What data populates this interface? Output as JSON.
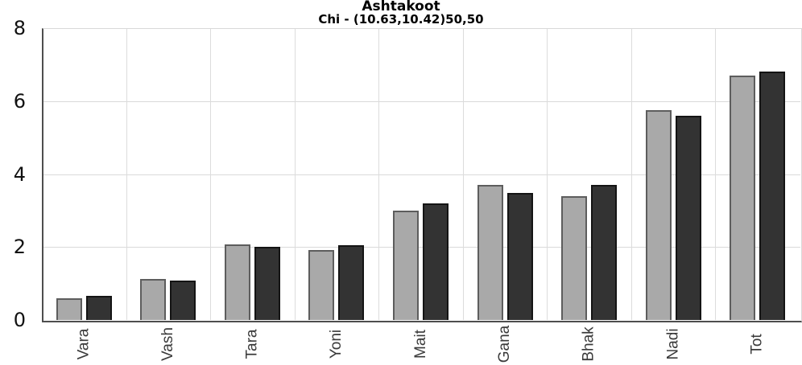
{
  "chart_data": {
    "type": "bar",
    "title": "Ashtakoot",
    "subtitle": "Chi - (10.63,10.42)50,50",
    "categories": [
      "Vara",
      "Vash",
      "Tara",
      "Yoni",
      "Mait",
      "Gana",
      "Bhak",
      "Nadi",
      "Tot"
    ],
    "series": [
      {
        "name": "light-gray-series",
        "fill": "#a9a9a9",
        "border": "#5d5d5d",
        "values": [
          0.6,
          1.12,
          2.07,
          1.92,
          3.0,
          3.7,
          3.4,
          5.75,
          6.7
        ]
      },
      {
        "name": "dark-gray-series",
        "fill": "#333333",
        "border": "#141414",
        "values": [
          0.66,
          1.08,
          2.0,
          2.05,
          3.2,
          3.48,
          3.7,
          5.6,
          6.8
        ]
      }
    ],
    "ylim": [
      0,
      8
    ],
    "yticks": [
      0,
      2,
      4,
      6,
      8
    ],
    "grid": true,
    "legend_position": "none",
    "xlabel": "",
    "ylabel": ""
  },
  "colors": {
    "background": "#ffffff",
    "axis": "#4e4e4e",
    "gridline": "#d9d9d9",
    "title_text": "#000000",
    "y_tick_text": "#111111",
    "x_tick_text": "#3a3a3a"
  }
}
